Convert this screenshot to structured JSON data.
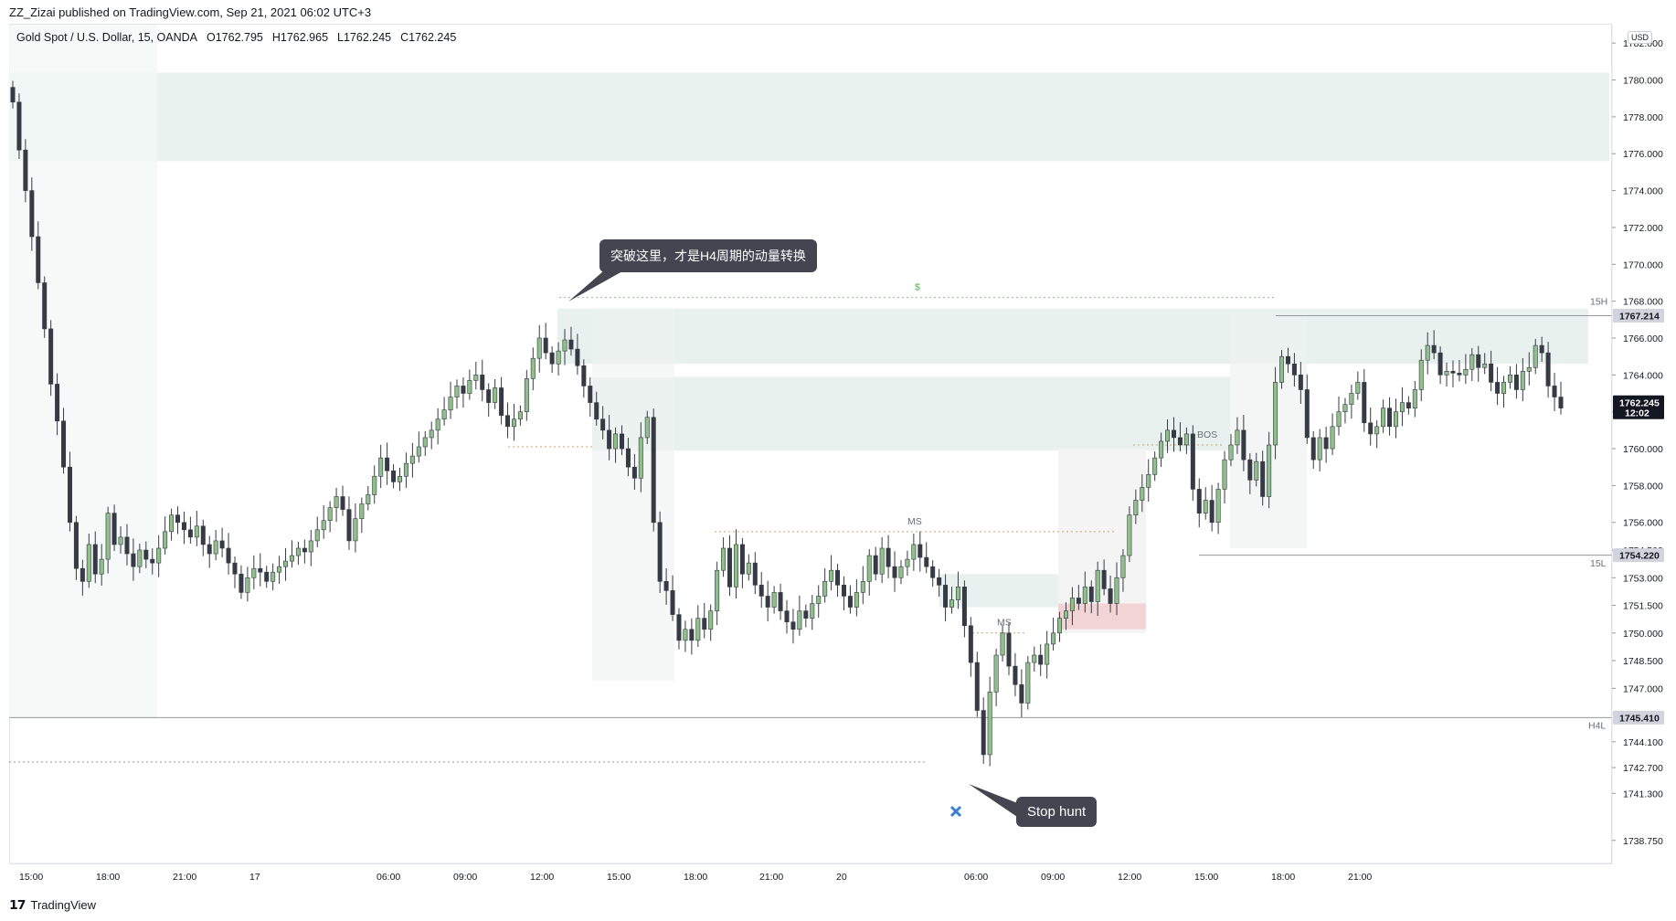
{
  "publish_line": "ZZ_Zizai published on TradingView.com, Sep 21, 2021 06:02 UTC+3",
  "legend": {
    "symbol": "Gold Spot / U.S. Dollar, 15, OANDA",
    "open": "O1762.795",
    "high": "H1762.965",
    "low": "L1762.245",
    "close": "C1762.245"
  },
  "currency_badge": "USD",
  "footer_logo": "TradingView",
  "colors": {
    "up": "#26a69a",
    "down": "#ef5350",
    "candle_body_up": "#8fbf8a",
    "candle_body_down": "#363a45",
    "wick": "#363a45",
    "zone_green": "#e8f1ee",
    "zone_red": "#f2d4d4",
    "callout_bg": "#434651",
    "level_line": "#9598a1",
    "cross": "#3d7ed6"
  },
  "annotations": {
    "breakout_callout": "突破这里，才是H4周期的动量转换",
    "stop_hunt_callout": "Stop hunt",
    "dollar_mark": "$",
    "ms_label_1": "MS",
    "ms_label_2": "MS",
    "bos_label": "BOS",
    "h15_label": "15H",
    "l15_label": "15L",
    "h4l_label": "H4L"
  },
  "chart_data": {
    "type": "candlestick",
    "symbol": "Gold Spot / U.S. Dollar",
    "interval": "15",
    "ylim": [
      1737.5,
      1783.0
    ],
    "y_ticks": [
      "1782.000",
      "1780.000",
      "1778.000",
      "1776.000",
      "1774.000",
      "1772.000",
      "1770.000",
      "1768.000",
      "1766.000",
      "1764.000",
      "1762.000",
      "1760.000",
      "1758.000",
      "1756.000",
      "1754.500",
      "1753.000",
      "1751.500",
      "1750.000",
      "1748.500",
      "1747.000",
      "1744.100",
      "1742.700",
      "1741.300",
      "1738.750"
    ],
    "x_ticks": [
      "15:00",
      "18:00",
      "21:00",
      "17",
      "06:00",
      "09:00",
      "12:00",
      "15:00",
      "18:00",
      "21:00",
      "20",
      "06:00",
      "09:00",
      "12:00",
      "15:00",
      "18:00",
      "21:00"
    ],
    "price_tags": [
      {
        "label": "1767.214",
        "value": 1767.214,
        "style": "gray"
      },
      {
        "label": "1762.245",
        "sub": "12:02",
        "value": 1762.245,
        "style": "dark"
      },
      {
        "label": "1754.220",
        "value": 1754.22,
        "style": "gray"
      },
      {
        "label": "1745.410",
        "value": 1745.41,
        "style": "gray"
      }
    ],
    "levels": {
      "h15": 1767.214,
      "l15": 1754.22,
      "h4l": 1745.41
    },
    "closes": [
      1778.8,
      1776.2,
      1774.0,
      1771.5,
      1769.0,
      1766.5,
      1763.5,
      1761.5,
      1759.0,
      1756.0,
      1753.5,
      1752.8,
      1754.8,
      1753.2,
      1754.0,
      1756.5,
      1754.8,
      1755.2,
      1754.3,
      1753.6,
      1754.5,
      1754.0,
      1753.8,
      1754.6,
      1755.5,
      1756.4,
      1756.0,
      1755.6,
      1755.2,
      1755.8,
      1754.8,
      1754.3,
      1755.0,
      1754.6,
      1753.8,
      1753.2,
      1752.2,
      1753.0,
      1753.5,
      1753.3,
      1752.8,
      1753.3,
      1753.6,
      1753.9,
      1754.2,
      1754.6,
      1754.4,
      1755.0,
      1755.6,
      1756.1,
      1756.8,
      1757.4,
      1756.7,
      1755.0,
      1756.2,
      1757.0,
      1757.5,
      1758.5,
      1759.5,
      1758.8,
      1758.2,
      1758.5,
      1759.2,
      1759.6,
      1760.1,
      1760.6,
      1761.0,
      1761.6,
      1762.1,
      1762.8,
      1763.4,
      1763.0,
      1763.7,
      1764.0,
      1763.2,
      1762.5,
      1763.3,
      1761.8,
      1761.2,
      1761.6,
      1762.0,
      1763.8,
      1764.9,
      1766.0,
      1765.2,
      1764.6,
      1765.3,
      1765.9,
      1765.4,
      1764.5,
      1763.4,
      1762.5,
      1761.6,
      1761.0,
      1760.0,
      1760.8,
      1760.0,
      1759.0,
      1758.4,
      1760.6,
      1761.7,
      1756.0,
      1752.8,
      1752.3,
      1751.0,
      1749.6,
      1750.2,
      1749.6,
      1750.8,
      1750.2,
      1751.2,
      1753.4,
      1754.6,
      1752.5,
      1754.8,
      1753.2,
      1753.8,
      1752.6,
      1752.0,
      1751.4,
      1752.2,
      1751.2,
      1750.6,
      1750.2,
      1751.2,
      1750.8,
      1751.6,
      1752.0,
      1752.8,
      1753.4,
      1752.6,
      1752.0,
      1751.4,
      1752.2,
      1752.8,
      1754.2,
      1753.2,
      1754.6,
      1753.6,
      1753.0,
      1753.6,
      1754.0,
      1754.8,
      1754.1,
      1753.6,
      1753.0,
      1752.6,
      1751.4,
      1751.8,
      1752.5,
      1750.4,
      1748.4,
      1745.8,
      1743.4,
      1746.8,
      1748.8,
      1750.0,
      1748.2,
      1747.2,
      1746.2,
      1748.4,
      1748.8,
      1748.3,
      1749.4,
      1750.0,
      1750.8,
      1751.2,
      1751.9,
      1751.6,
      1752.5,
      1751.7,
      1753.4,
      1752.4,
      1751.6,
      1753.0,
      1754.2,
      1756.4,
      1757.2,
      1757.9,
      1758.6,
      1759.5,
      1760.4,
      1761.0,
      1760.6,
      1760.2,
      1760.8,
      1757.8,
      1756.5,
      1757.2,
      1756.0,
      1757.8,
      1759.4,
      1760.2,
      1761.0,
      1759.4,
      1758.3,
      1759.3,
      1757.4,
      1760.2,
      1763.6,
      1765.0,
      1764.6,
      1764.0,
      1763.2,
      1760.6,
      1759.4,
      1760.6,
      1760.0,
      1761.2,
      1762.0,
      1762.4,
      1763.0,
      1763.6,
      1761.4,
      1760.8,
      1761.2,
      1762.2,
      1761.2,
      1762.0,
      1762.5,
      1762.2,
      1763.2,
      1764.8,
      1765.6,
      1765.2,
      1764.0,
      1764.2,
      1764.1,
      1764.0,
      1764.3,
      1765.1,
      1764.4,
      1764.6,
      1763.6,
      1763.0,
      1763.6,
      1764.0,
      1763.2,
      1764.2,
      1764.4,
      1765.6,
      1765.2,
      1763.4,
      1762.8,
      1762.2
    ]
  }
}
